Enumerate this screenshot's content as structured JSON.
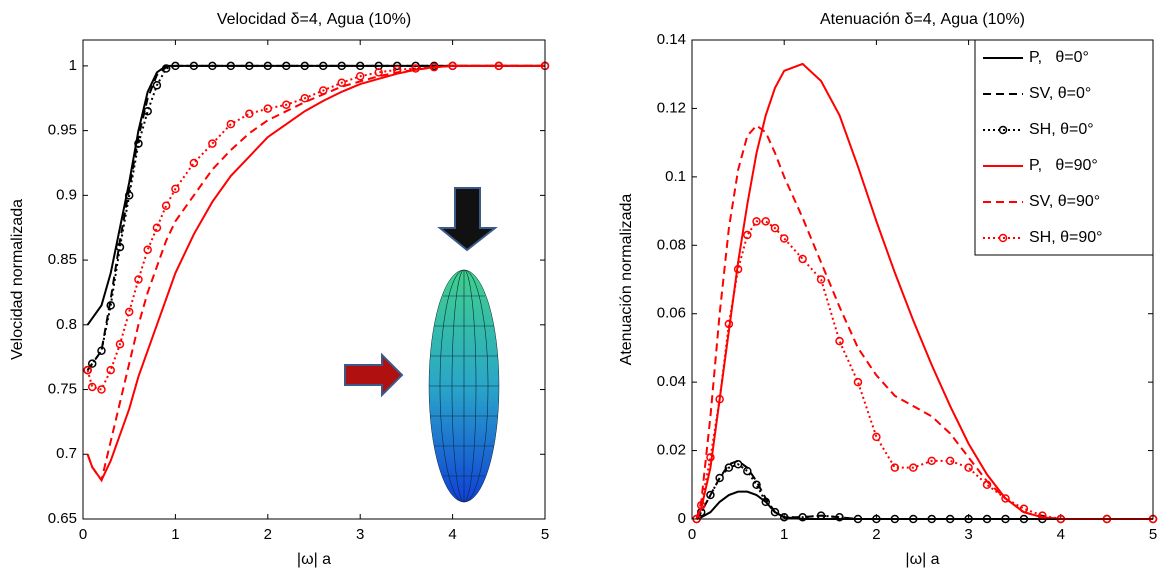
{
  "chart_data": [
    {
      "type": "line",
      "title": "Velocidad δ=4, Agua (10%)",
      "x_label": "|ω| a",
      "y_label": "Velocidad normalizada",
      "x": [
        0.05,
        0.1,
        0.2,
        0.3,
        0.4,
        0.5,
        0.6,
        0.7,
        0.8,
        0.9,
        1.0,
        1.2,
        1.4,
        1.6,
        1.8,
        2.0,
        2.2,
        2.4,
        2.6,
        2.8,
        3.0,
        3.2,
        3.4,
        3.6,
        3.8,
        4.0,
        4.5,
        5.0
      ],
      "xlim": [
        0,
        5
      ],
      "xticks": [
        0,
        1,
        2,
        3,
        4,
        5
      ],
      "ylim": [
        0.65,
        1.02
      ],
      "yticks": [
        0.65,
        0.7,
        0.75,
        0.8,
        0.85,
        0.9,
        0.95,
        1
      ],
      "legend": false,
      "series": [
        {
          "color": "#000000",
          "style": "solid",
          "marker": "none",
          "values": [
            0.8,
            0.805,
            0.815,
            0.84,
            0.875,
            0.91,
            0.95,
            0.98,
            0.995,
            1.0,
            1,
            1,
            1,
            1,
            1,
            1,
            1,
            1,
            1,
            1,
            1,
            1,
            1,
            1,
            1,
            1,
            1,
            1
          ]
        },
        {
          "color": "#000000",
          "style": "dashed",
          "marker": "none",
          "values": [
            0.765,
            0.77,
            0.78,
            0.82,
            0.865,
            0.905,
            0.945,
            0.975,
            0.993,
            0.999,
            1,
            1,
            1,
            1,
            1,
            1,
            1,
            1,
            1,
            1,
            1,
            1,
            1,
            1,
            1,
            1,
            1,
            1
          ]
        },
        {
          "color": "#000000",
          "style": "dotted",
          "marker": "o",
          "values": [
            0.765,
            0.77,
            0.78,
            0.815,
            0.86,
            0.9,
            0.94,
            0.965,
            0.985,
            0.998,
            1,
            1,
            1,
            1,
            1,
            1,
            1,
            1,
            1,
            1,
            1,
            1,
            1,
            1,
            1,
            1,
            1,
            1
          ]
        },
        {
          "color": "#ff0000",
          "style": "solid",
          "marker": "none",
          "values": [
            0.7,
            0.69,
            0.68,
            0.695,
            0.715,
            0.735,
            0.76,
            0.78,
            0.8,
            0.82,
            0.84,
            0.87,
            0.895,
            0.915,
            0.93,
            0.945,
            0.955,
            0.965,
            0.973,
            0.98,
            0.986,
            0.99,
            0.994,
            0.997,
            0.999,
            1,
            1,
            1
          ]
        },
        {
          "color": "#ff0000",
          "style": "dashed",
          "marker": "none",
          "values": [
            0.7,
            0.69,
            0.68,
            0.71,
            0.74,
            0.77,
            0.8,
            0.825,
            0.845,
            0.865,
            0.88,
            0.9,
            0.92,
            0.935,
            0.948,
            0.958,
            0.965,
            0.972,
            0.978,
            0.984,
            0.988,
            0.992,
            0.995,
            0.997,
            0.999,
            1,
            1,
            1
          ]
        },
        {
          "color": "#ff0000",
          "style": "dotted",
          "marker": "o",
          "values": [
            0.765,
            0.752,
            0.75,
            0.765,
            0.785,
            0.81,
            0.835,
            0.858,
            0.875,
            0.892,
            0.905,
            0.925,
            0.94,
            0.955,
            0.963,
            0.967,
            0.97,
            0.975,
            0.981,
            0.987,
            0.992,
            0.995,
            0.997,
            0.998,
            0.999,
            1,
            1,
            1
          ]
        }
      ]
    },
    {
      "type": "line",
      "title": "Atenuación δ=4, Agua (10%)",
      "x_label": "|ω| a",
      "y_label": "Atenuación normalizada",
      "x": [
        0.05,
        0.1,
        0.2,
        0.3,
        0.4,
        0.5,
        0.6,
        0.7,
        0.8,
        0.9,
        1.0,
        1.2,
        1.4,
        1.6,
        1.8,
        2.0,
        2.2,
        2.4,
        2.6,
        2.8,
        3.0,
        3.2,
        3.4,
        3.6,
        3.8,
        4.0,
        4.5,
        5.0
      ],
      "xlim": [
        0,
        5
      ],
      "xticks": [
        0,
        1,
        2,
        3,
        4,
        5
      ],
      "ylim": [
        0,
        0.14
      ],
      "yticks": [
        0,
        0.02,
        0.04,
        0.06,
        0.08,
        0.1,
        0.12,
        0.14
      ],
      "legend": "upper right",
      "series": [
        {
          "name": "P,   θ=0°",
          "color": "#000000",
          "style": "solid",
          "marker": "none",
          "values": [
            0,
            0.0005,
            0.002,
            0.005,
            0.007,
            0.008,
            0.008,
            0.007,
            0.005,
            0.002,
            0.0005,
            0,
            0,
            0,
            0,
            0,
            0,
            0,
            0,
            0,
            0,
            0,
            0,
            0,
            0,
            0,
            0,
            0
          ]
        },
        {
          "name": "SV, θ=0°",
          "color": "#000000",
          "style": "dashed",
          "marker": "none",
          "values": [
            0,
            0.002,
            0.007,
            0.012,
            0.016,
            0.017,
            0.015,
            0.011,
            0.006,
            0.002,
            0.0005,
            0.0005,
            0.001,
            0.0005,
            0,
            0,
            0,
            0,
            0,
            0,
            0,
            0,
            0,
            0,
            0,
            0,
            0,
            0
          ]
        },
        {
          "name": "SH, θ=0°",
          "color": "#000000",
          "style": "dotted",
          "marker": "o",
          "values": [
            0,
            0.002,
            0.007,
            0.012,
            0.015,
            0.016,
            0.014,
            0.01,
            0.005,
            0.002,
            0.0005,
            0.0005,
            0.001,
            0.0005,
            0,
            0,
            0,
            0,
            0,
            0,
            0,
            0,
            0,
            0,
            0,
            0,
            0,
            0
          ]
        },
        {
          "name": "P,   θ=90°",
          "color": "#ff0000",
          "style": "solid",
          "marker": "none",
          "values": [
            0,
            0.003,
            0.015,
            0.035,
            0.055,
            0.075,
            0.092,
            0.107,
            0.118,
            0.126,
            0.131,
            0.133,
            0.128,
            0.118,
            0.103,
            0.087,
            0.072,
            0.058,
            0.045,
            0.033,
            0.022,
            0.013,
            0.006,
            0.002,
            0.0005,
            0,
            0,
            0
          ]
        },
        {
          "name": "SV, θ=90°",
          "color": "#ff0000",
          "style": "dashed",
          "marker": "none",
          "values": [
            0,
            0.005,
            0.03,
            0.06,
            0.085,
            0.102,
            0.112,
            0.115,
            0.113,
            0.107,
            0.1,
            0.088,
            0.075,
            0.062,
            0.05,
            0.042,
            0.036,
            0.033,
            0.03,
            0.025,
            0.018,
            0.011,
            0.006,
            0.002,
            0.0005,
            0,
            0,
            0
          ]
        },
        {
          "name": "SH, θ=90°",
          "color": "#ff0000",
          "style": "dotted",
          "marker": "o",
          "values": [
            0,
            0.004,
            0.018,
            0.035,
            0.057,
            0.073,
            0.083,
            0.087,
            0.087,
            0.085,
            0.082,
            0.076,
            0.07,
            0.052,
            0.04,
            0.024,
            0.015,
            0.015,
            0.017,
            0.017,
            0.015,
            0.01,
            0.006,
            0.003,
            0.001,
            0,
            0,
            0
          ]
        }
      ]
    }
  ]
}
